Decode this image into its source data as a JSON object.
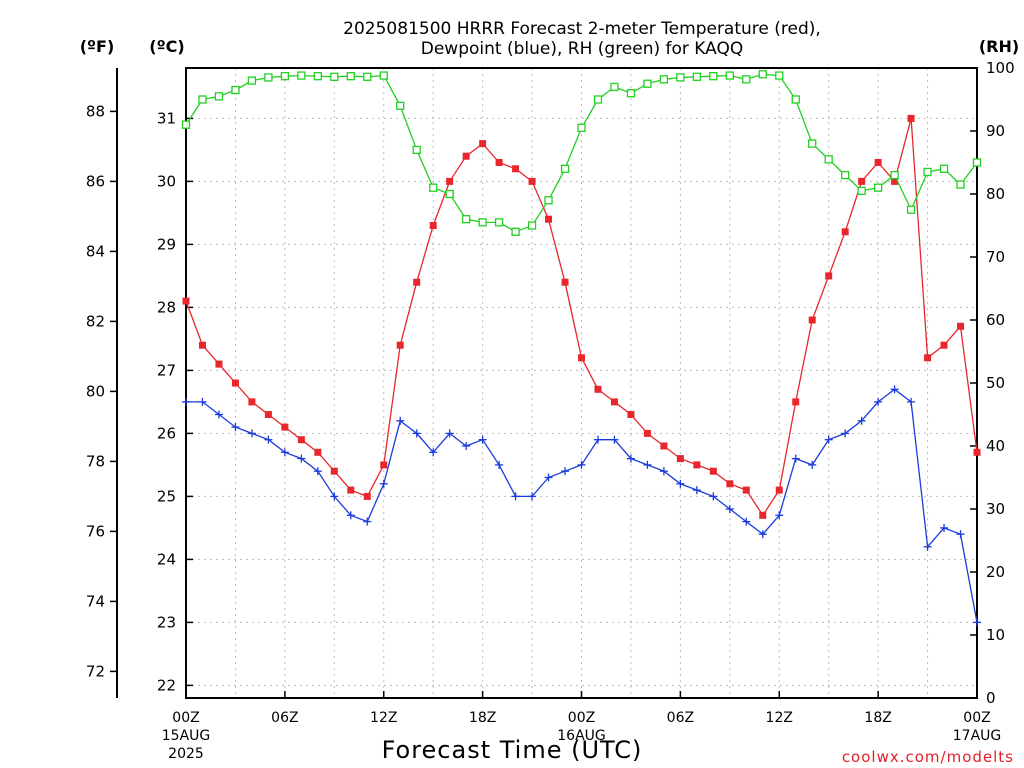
{
  "chart_data": {
    "type": "line",
    "title_lines": [
      "2025081500 HRRR Forecast 2-meter Temperature (red),",
      "Dewpoint (blue), RH (green) for KAQQ"
    ],
    "xlabel": "Forecast Time (UTC)",
    "credit": "coolwx.com/modelts",
    "unit_labels": {
      "fahrenheit": "(ºF)",
      "celsius": "(ºC)",
      "rh": "(RH)"
    },
    "x_range_hours": [
      0,
      48
    ],
    "x_ticks": [
      {
        "hour": 0,
        "lines": [
          "00Z",
          "15AUG",
          "2025"
        ]
      },
      {
        "hour": 6,
        "lines": [
          "06Z"
        ]
      },
      {
        "hour": 12,
        "lines": [
          "12Z"
        ]
      },
      {
        "hour": 18,
        "lines": [
          "18Z"
        ]
      },
      {
        "hour": 24,
        "lines": [
          "00Z",
          "16AUG"
        ]
      },
      {
        "hour": 30,
        "lines": [
          "06Z"
        ]
      },
      {
        "hour": 36,
        "lines": [
          "12Z"
        ]
      },
      {
        "hour": 42,
        "lines": [
          "18Z"
        ]
      },
      {
        "hour": 48,
        "lines": [
          "00Z",
          "17AUG"
        ]
      }
    ],
    "y_celsius_range": [
      21.8,
      31.8
    ],
    "y_celsius_ticks": [
      22,
      23,
      24,
      25,
      26,
      27,
      28,
      29,
      30,
      31
    ],
    "y_fahrenheit_ticks": [
      72,
      74,
      76,
      78,
      80,
      82,
      84,
      86,
      88
    ],
    "y_rh_range": [
      0,
      100
    ],
    "y_rh_ticks": [
      0,
      10,
      20,
      30,
      40,
      50,
      60,
      70,
      80,
      90,
      100
    ],
    "grid": true,
    "series": [
      {
        "name": "Temperature",
        "axis": "celsius",
        "color": "#e8262b",
        "marker": "filled-square",
        "values": [
          28.1,
          27.4,
          27.1,
          26.8,
          26.5,
          26.3,
          26.1,
          25.9,
          25.7,
          25.4,
          25.1,
          25.0,
          25.5,
          27.4,
          28.4,
          29.3,
          30.0,
          30.4,
          30.6,
          30.3,
          30.2,
          30.0,
          29.4,
          28.4,
          27.2,
          26.7,
          26.5,
          26.3,
          26.0,
          25.8,
          25.6,
          25.5,
          25.4,
          25.2,
          25.1,
          24.7,
          25.1,
          26.5,
          27.8,
          28.5,
          29.2,
          30.0,
          30.3,
          30.0,
          31.0,
          27.2,
          27.4,
          27.7,
          25.7
        ]
      },
      {
        "name": "Dewpoint",
        "axis": "celsius",
        "color": "#1a3bdc",
        "marker": "plus",
        "values": [
          26.5,
          26.5,
          26.3,
          26.1,
          26.0,
          25.9,
          25.7,
          25.6,
          25.4,
          25.0,
          24.7,
          24.6,
          25.2,
          26.2,
          26.0,
          25.7,
          26.0,
          25.8,
          25.9,
          25.5,
          25.0,
          25.0,
          25.3,
          25.4,
          25.5,
          25.9,
          25.9,
          25.6,
          25.5,
          25.4,
          25.2,
          25.1,
          25.0,
          24.8,
          24.6,
          24.4,
          24.7,
          25.6,
          25.5,
          25.9,
          26.0,
          26.2,
          26.5,
          26.7,
          26.5,
          24.2,
          24.5,
          24.4,
          23.0
        ]
      },
      {
        "name": "RH",
        "axis": "rh",
        "color": "#22d022",
        "marker": "open-square",
        "values": [
          91,
          95,
          95.5,
          96.5,
          98,
          98.5,
          98.7,
          98.8,
          98.7,
          98.6,
          98.7,
          98.6,
          98.8,
          94,
          87,
          81,
          80,
          76,
          75.5,
          75.5,
          74,
          75,
          79,
          84,
          90.5,
          95,
          97,
          96,
          97.5,
          98.2,
          98.5,
          98.6,
          98.7,
          98.8,
          98.2,
          99,
          98.8,
          95,
          88,
          85.5,
          83,
          80.5,
          81,
          83,
          77.5,
          83.5,
          84,
          81.5,
          85
        ]
      }
    ]
  }
}
